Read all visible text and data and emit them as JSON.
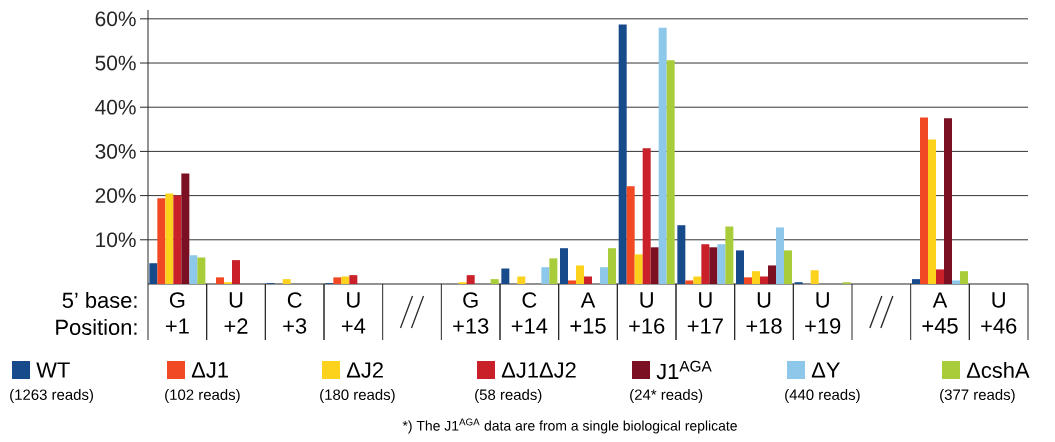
{
  "chart_data": {
    "type": "bar",
    "categories": [
      "+1",
      "+2",
      "+3",
      "+4",
      null,
      "+13",
      "+14",
      "+15",
      "+16",
      "+17",
      "+18",
      "+19",
      null,
      "+45",
      "+46"
    ],
    "series": [
      {
        "name": "WT",
        "color": "#174a8b",
        "values": [
          4.7,
          0,
          0.2,
          0.2,
          null,
          0,
          3.5,
          8.1,
          58.7,
          13.3,
          7.6,
          0.4,
          null,
          1.1,
          0
        ]
      },
      {
        "name": "ΔJ1",
        "color": "#f04923",
        "values": [
          19.4,
          1.5,
          0,
          1.5,
          null,
          0,
          0,
          0.8,
          22.1,
          0.8,
          1.5,
          0,
          null,
          37.7,
          0
        ]
      },
      {
        "name": "ΔJ2",
        "color": "#fdd21c",
        "values": [
          20.5,
          0.4,
          1.1,
          1.7,
          null,
          0.4,
          1.7,
          4.2,
          6.7,
          1.7,
          2.9,
          3.1,
          null,
          32.7,
          0
        ]
      },
      {
        "name": "ΔJ1ΔJ2",
        "color": "#c9202a",
        "values": [
          20.0,
          5.4,
          0,
          2.0,
          null,
          2.0,
          0,
          1.7,
          30.7,
          9.0,
          1.7,
          0,
          null,
          3.3,
          0
        ]
      },
      {
        "name": "J1$^{AGA}$",
        "color": "#7b1022",
        "values": [
          25.0,
          0,
          0,
          0,
          null,
          0,
          0,
          0,
          8.3,
          8.3,
          4.2,
          0,
          null,
          37.5,
          0
        ]
      },
      {
        "name": "ΔY",
        "color": "#8dc8ea",
        "values": [
          6.5,
          0,
          0,
          0,
          null,
          0,
          3.8,
          3.8,
          58.0,
          9.0,
          12.8,
          0,
          null,
          0.8,
          0
        ]
      },
      {
        "name": "ΔcshA",
        "color": "#a8cc3a",
        "values": [
          6.0,
          0,
          0,
          0,
          null,
          1.1,
          5.8,
          8.1,
          50.6,
          13.0,
          7.6,
          0.4,
          null,
          2.9,
          0
        ]
      }
    ],
    "ylim": [
      0,
      62
    ],
    "yticks": [
      {
        "value": 10,
        "label": "10%"
      },
      {
        "value": 20,
        "label": "20%"
      },
      {
        "value": 30,
        "label": "30%"
      },
      {
        "value": 40,
        "label": "40%"
      },
      {
        "value": 50,
        "label": "50%"
      },
      {
        "value": 60,
        "label": "60%"
      }
    ],
    "grid": "y",
    "legend": "bottom",
    "annotations": [
      "5’ base:",
      "Position:",
      "G",
      "U",
      "C",
      "U",
      "G",
      "C",
      "A",
      "U",
      "U",
      "U",
      "U",
      "A",
      "U",
      "(1263 reads)",
      "(102 reads)",
      "(180 reads)",
      "(58 reads)",
      "(24* reads)",
      "(440 reads)",
      "(377 reads)",
      "*) The J1$^{AGA}$ data are from a single biological replicate"
    ]
  }
}
